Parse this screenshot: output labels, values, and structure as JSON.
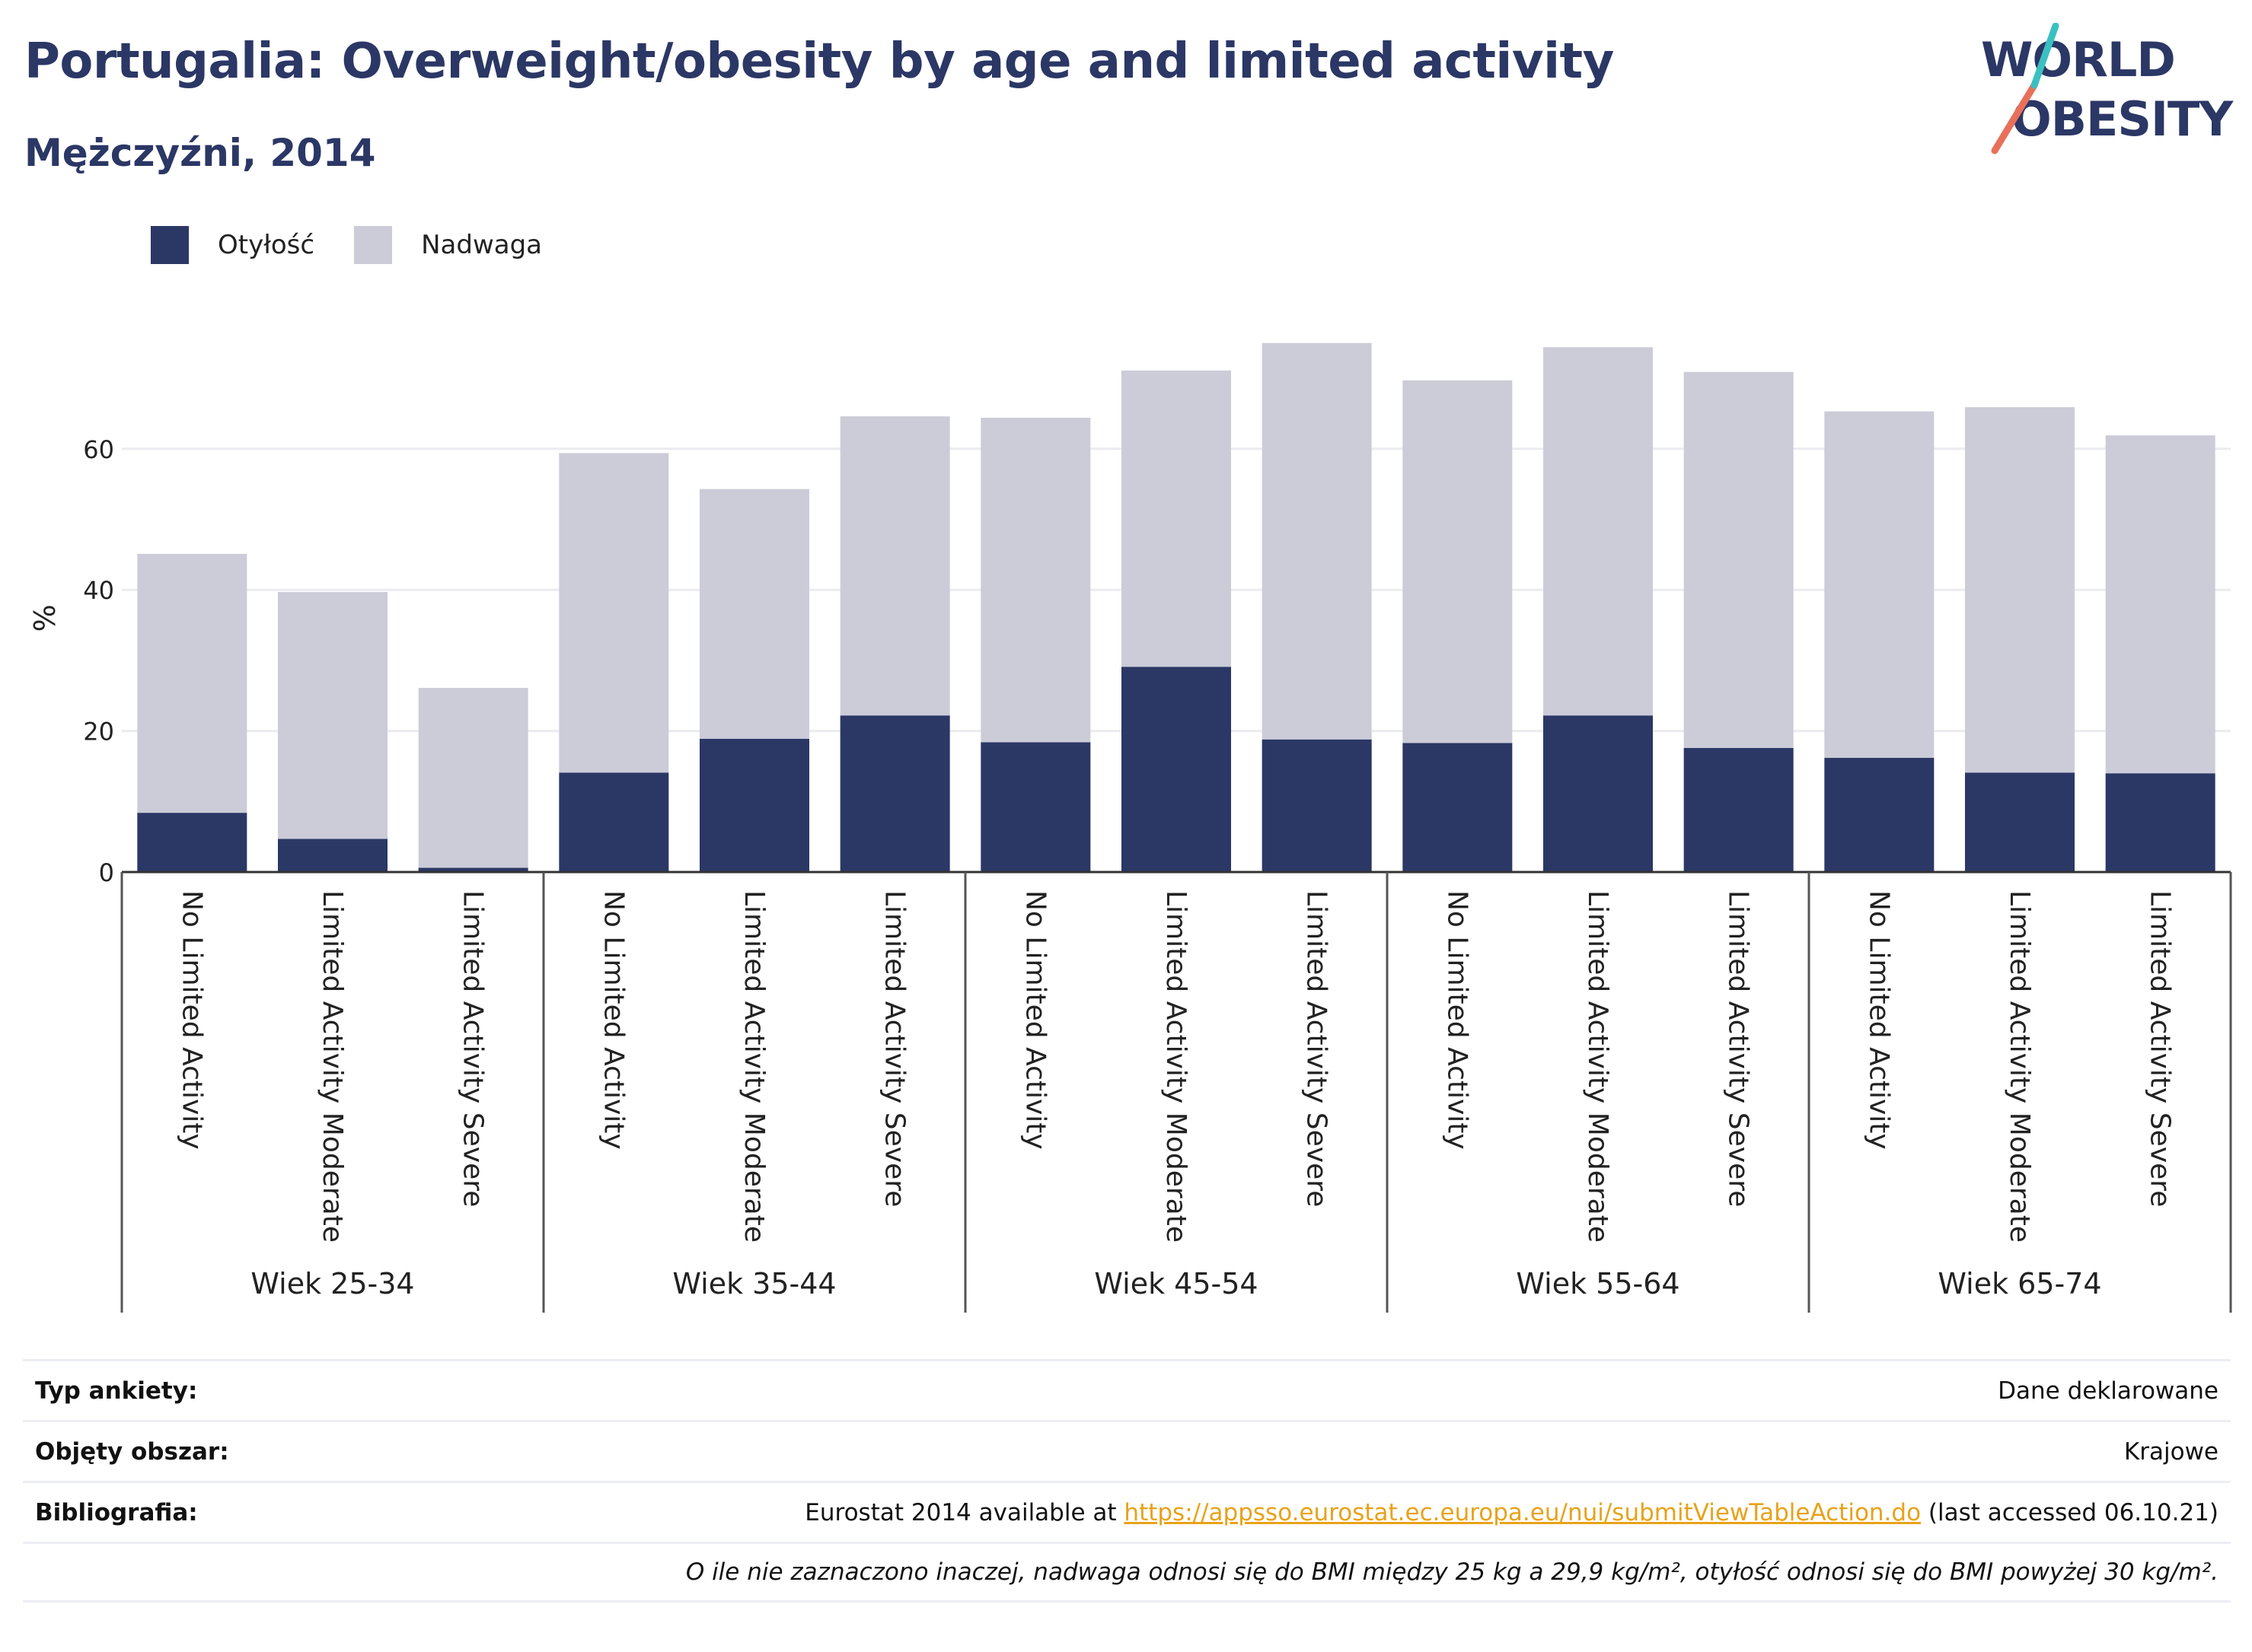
{
  "title": "Portugalia: Overweight/obesity by age and limited activity",
  "subtitle": "Mężczyźni, 2014",
  "logo": {
    "line1": "WORLD",
    "line2": "OBESITY",
    "colors": [
      "#2b3765",
      "#e8705a",
      "#3bc0c0"
    ]
  },
  "legend": [
    {
      "label": "Otyłość",
      "color": "#2b3765"
    },
    {
      "label": "Nadwaga",
      "color": "#cbccd8"
    }
  ],
  "chart_data": {
    "type": "bar",
    "stacked": true,
    "ylabel": "%",
    "ylim": [
      0,
      80
    ],
    "yticks": [
      0,
      20,
      40,
      60
    ],
    "grid": true,
    "legend_position": "top-left",
    "groups": [
      "Wiek 25-34",
      "Wiek 35-44",
      "Wiek 45-54",
      "Wiek 55-64",
      "Wiek 65-74"
    ],
    "categories": [
      "No Limited Activity",
      "Limited Activity Moderate",
      "Limited Activity Severe",
      "No Limited Activity",
      "Limited Activity Moderate",
      "Limited Activity Severe",
      "No Limited Activity",
      "Limited Activity Moderate",
      "Limited Activity Severe",
      "No Limited Activity",
      "Limited Activity Moderate",
      "Limited Activity Severe",
      "No Limited Activity",
      "Limited Activity Moderate",
      "Limited Activity Severe"
    ],
    "series": [
      {
        "name": "Otyłość",
        "color": "#2b3765",
        "values": [
          8.4,
          4.7,
          0.6,
          14.1,
          18.9,
          22.2,
          18.4,
          29.1,
          18.8,
          18.3,
          22.2,
          17.6,
          16.2,
          14.1,
          14.0
        ]
      },
      {
        "name": "Nadwaga",
        "color": "#cbccd8",
        "values": [
          36.7,
          35.0,
          25.5,
          45.3,
          35.4,
          42.4,
          46.0,
          42.0,
          56.2,
          51.4,
          52.2,
          53.3,
          49.1,
          51.8,
          47.9
        ]
      }
    ]
  },
  "info": {
    "survey_type_label": "Typ ankiety:",
    "survey_type_value": "Dane deklarowane",
    "coverage_label": "Objęty obszar:",
    "coverage_value": "Krajowe",
    "bibliography_label": "Bibliografia:",
    "bibliography_prefix": "Eurostat 2014 available at",
    "bibliography_link": "https://appsso.eurostat.ec.europa.eu/nui/submitViewTableAction.do",
    "bibliography_suffix": "(last accessed 06.10.21)",
    "footnote": "O ile nie zaznaczono inaczej, nadwaga odnosi się do BMI między 25 kg a 29,9 kg/m², otyłość odnosi się do BMI powyżej 30 kg/m²."
  }
}
